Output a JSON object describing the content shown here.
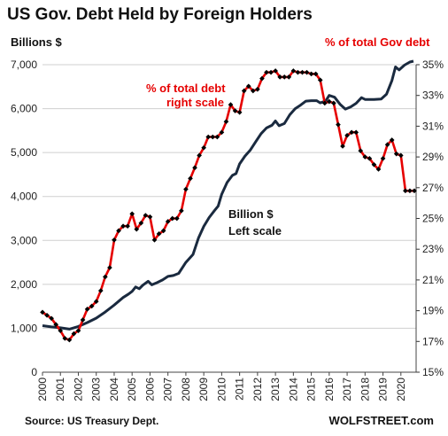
{
  "chart_data": {
    "type": "line",
    "title": "US Gov. Debt Held by Foreign Holders",
    "source": "Source: US Treasury Dept.",
    "brand": "WOLFSTREET.com",
    "x_tick_labels": [
      "2000",
      "2001",
      "2002",
      "2003",
      "2004",
      "2005",
      "2006",
      "2007",
      "2008",
      "2009",
      "2010",
      "2011",
      "2012",
      "2013",
      "2014",
      "2015",
      "2016",
      "2017",
      "2018",
      "2019",
      "2020"
    ],
    "left_axis": {
      "label": "Billions $",
      "ylim": [
        0,
        7000
      ],
      "ticks": [
        "0",
        "1,000",
        "2,000",
        "3,000",
        "4,000",
        "5,000",
        "6,000",
        "7,000"
      ]
    },
    "right_axis": {
      "label": "% of total Gov debt",
      "ylim": [
        15,
        35
      ],
      "ticks": [
        "15%",
        "17%",
        "19%",
        "21%",
        "23%",
        "25%",
        "27%",
        "29%",
        "31%",
        "33%",
        "35%"
      ]
    },
    "annotations": {
      "red_line": [
        "% of total debt",
        "right scale"
      ],
      "black_line": [
        "Billion $",
        "Left scale"
      ]
    },
    "colors": {
      "billions": "#1a2a3f",
      "percent_line": "#e60000",
      "percent_marker": "#000000"
    },
    "series": [
      {
        "name": "Billion $",
        "axis": "left",
        "points": [
          [
            2000.0,
            1060
          ],
          [
            2000.5,
            1030
          ],
          [
            2001.0,
            1010
          ],
          [
            2001.5,
            980
          ],
          [
            2002.0,
            1040
          ],
          [
            2002.5,
            1130
          ],
          [
            2003.0,
            1230
          ],
          [
            2003.5,
            1370
          ],
          [
            2004.0,
            1530
          ],
          [
            2004.5,
            1700
          ],
          [
            2004.8,
            1780
          ],
          [
            2005.0,
            1840
          ],
          [
            2005.2,
            1940
          ],
          [
            2005.4,
            1900
          ],
          [
            2005.6,
            1980
          ],
          [
            2005.9,
            2070
          ],
          [
            2006.1,
            1990
          ],
          [
            2006.4,
            2040
          ],
          [
            2006.7,
            2100
          ],
          [
            2007.0,
            2180
          ],
          [
            2007.3,
            2200
          ],
          [
            2007.6,
            2250
          ],
          [
            2008.0,
            2500
          ],
          [
            2008.4,
            2680
          ],
          [
            2008.7,
            3050
          ],
          [
            2009.0,
            3320
          ],
          [
            2009.3,
            3520
          ],
          [
            2009.6,
            3680
          ],
          [
            2009.8,
            3780
          ],
          [
            2010.0,
            4050
          ],
          [
            2010.3,
            4320
          ],
          [
            2010.6,
            4480
          ],
          [
            2010.8,
            4520
          ],
          [
            2011.0,
            4740
          ],
          [
            2011.3,
            4920
          ],
          [
            2011.6,
            5060
          ],
          [
            2011.9,
            5250
          ],
          [
            2012.2,
            5430
          ],
          [
            2012.5,
            5560
          ],
          [
            2012.8,
            5620
          ],
          [
            2013.0,
            5720
          ],
          [
            2013.2,
            5610
          ],
          [
            2013.5,
            5660
          ],
          [
            2013.8,
            5860
          ],
          [
            2014.1,
            6000
          ],
          [
            2014.4,
            6080
          ],
          [
            2014.7,
            6170
          ],
          [
            2015.0,
            6180
          ],
          [
            2015.3,
            6180
          ],
          [
            2015.5,
            6130
          ],
          [
            2015.8,
            6170
          ],
          [
            2016.0,
            6300
          ],
          [
            2016.3,
            6260
          ],
          [
            2016.6,
            6100
          ],
          [
            2016.9,
            5990
          ],
          [
            2017.2,
            6040
          ],
          [
            2017.5,
            6120
          ],
          [
            2017.8,
            6250
          ],
          [
            2018.0,
            6210
          ],
          [
            2018.5,
            6210
          ],
          [
            2018.9,
            6220
          ],
          [
            2019.2,
            6330
          ],
          [
            2019.5,
            6640
          ],
          [
            2019.7,
            6950
          ],
          [
            2019.9,
            6880
          ],
          [
            2020.2,
            6990
          ],
          [
            2020.5,
            7060
          ],
          [
            2020.7,
            7080
          ]
        ]
      },
      {
        "name": "% of total debt",
        "axis": "right",
        "points": [
          [
            2000.0,
            18.9
          ],
          [
            2000.25,
            18.7
          ],
          [
            2000.5,
            18.5
          ],
          [
            2000.75,
            18.1
          ],
          [
            2001.0,
            17.7
          ],
          [
            2001.25,
            17.2
          ],
          [
            2001.5,
            17.1
          ],
          [
            2001.75,
            17.5
          ],
          [
            2002.0,
            17.7
          ],
          [
            2002.25,
            18.4
          ],
          [
            2002.5,
            19.1
          ],
          [
            2002.75,
            19.3
          ],
          [
            2003.0,
            19.6
          ],
          [
            2003.25,
            20.3
          ],
          [
            2003.5,
            21.2
          ],
          [
            2003.75,
            21.8
          ],
          [
            2004.0,
            23.6
          ],
          [
            2004.25,
            24.2
          ],
          [
            2004.5,
            24.5
          ],
          [
            2004.75,
            24.5
          ],
          [
            2005.0,
            25.3
          ],
          [
            2005.25,
            24.3
          ],
          [
            2005.5,
            24.7
          ],
          [
            2005.75,
            25.2
          ],
          [
            2006.0,
            25.1
          ],
          [
            2006.25,
            23.6
          ],
          [
            2006.5,
            24.0
          ],
          [
            2006.75,
            24.2
          ],
          [
            2007.0,
            24.8
          ],
          [
            2007.25,
            25.0
          ],
          [
            2007.5,
            25.0
          ],
          [
            2007.75,
            25.5
          ],
          [
            2008.0,
            26.9
          ],
          [
            2008.25,
            27.6
          ],
          [
            2008.5,
            28.3
          ],
          [
            2008.75,
            29.1
          ],
          [
            2009.0,
            29.6
          ],
          [
            2009.25,
            30.3
          ],
          [
            2009.5,
            30.3
          ],
          [
            2009.75,
            30.3
          ],
          [
            2010.0,
            30.6
          ],
          [
            2010.25,
            31.3
          ],
          [
            2010.5,
            32.4
          ],
          [
            2010.75,
            32.0
          ],
          [
            2011.0,
            31.9
          ],
          [
            2011.25,
            33.3
          ],
          [
            2011.5,
            33.6
          ],
          [
            2011.75,
            33.3
          ],
          [
            2012.0,
            33.4
          ],
          [
            2012.25,
            34.1
          ],
          [
            2012.5,
            34.5
          ],
          [
            2012.75,
            34.5
          ],
          [
            2013.0,
            34.6
          ],
          [
            2013.25,
            34.2
          ],
          [
            2013.5,
            34.2
          ],
          [
            2013.75,
            34.2
          ],
          [
            2014.0,
            34.6
          ],
          [
            2014.25,
            34.5
          ],
          [
            2014.5,
            34.5
          ],
          [
            2014.75,
            34.5
          ],
          [
            2015.0,
            34.4
          ],
          [
            2015.25,
            34.4
          ],
          [
            2015.5,
            34.0
          ],
          [
            2015.75,
            32.5
          ],
          [
            2016.0,
            32.6
          ],
          [
            2016.25,
            32.5
          ],
          [
            2016.5,
            31.1
          ],
          [
            2016.75,
            29.7
          ],
          [
            2017.0,
            30.4
          ],
          [
            2017.25,
            30.6
          ],
          [
            2017.5,
            30.6
          ],
          [
            2017.75,
            29.4
          ],
          [
            2018.0,
            29.0
          ],
          [
            2018.25,
            28.9
          ],
          [
            2018.5,
            28.5
          ],
          [
            2018.75,
            28.2
          ],
          [
            2019.0,
            28.9
          ],
          [
            2019.25,
            29.8
          ],
          [
            2019.5,
            30.1
          ],
          [
            2019.75,
            29.2
          ],
          [
            2020.0,
            29.1
          ],
          [
            2020.25,
            26.8
          ],
          [
            2020.5,
            26.8
          ],
          [
            2020.75,
            26.8
          ]
        ]
      }
    ]
  }
}
